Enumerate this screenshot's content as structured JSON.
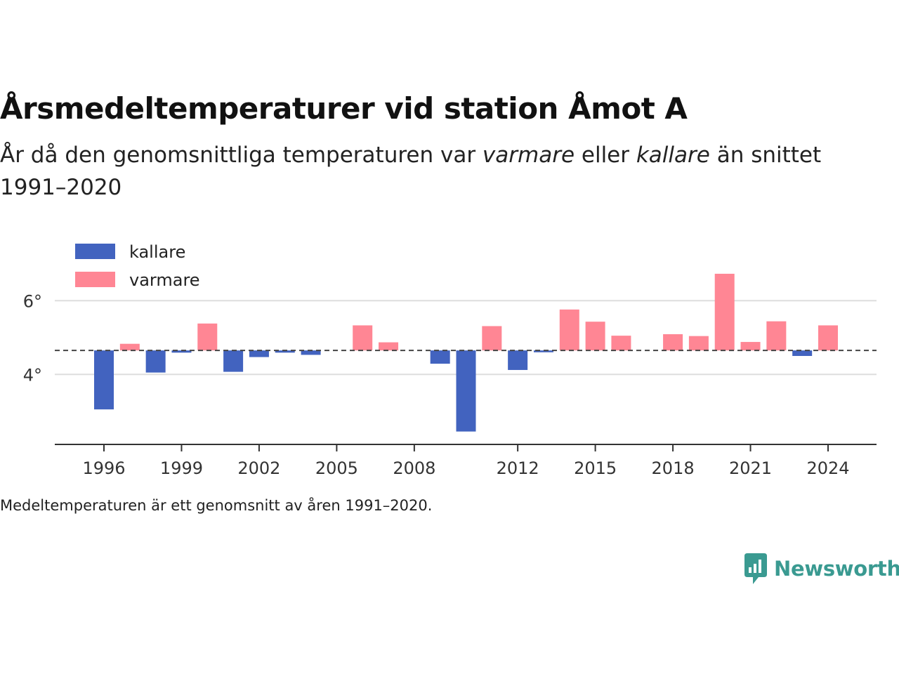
{
  "title": "Årsmedeltemperaturer vid station Åmot A",
  "subtitle": {
    "part1": "År då den genomsnittliga temperaturen var ",
    "warm_word": "varmare",
    "part2": " eller ",
    "cold_word": "kallare",
    "part3": " än snittet 1991–2020"
  },
  "footnote": "Medeltemperaturen är ett genomsnitt av åren 1991–2020.",
  "brand": {
    "name": "Newsworthy",
    "icon": "newsworthy-logo-icon"
  },
  "colors": {
    "kallare": "#4263bf",
    "varmare": "#ff8694",
    "grid": "#dddddd",
    "axis": "#333333",
    "baseline": "#444444",
    "brand": "#3a9a91"
  },
  "chart_data": {
    "type": "bar",
    "baseline": 4.65,
    "baseline_style": "dashed",
    "x": [
      1996,
      1997,
      1998,
      1999,
      2000,
      2001,
      2002,
      2003,
      2004,
      2005,
      2006,
      2007,
      2008,
      2009,
      2010,
      2011,
      2012,
      2013,
      2014,
      2015,
      2016,
      2017,
      2018,
      2019,
      2020,
      2021,
      2022,
      2023,
      2024
    ],
    "values": [
      3.05,
      4.83,
      4.05,
      4.59,
      5.38,
      4.07,
      4.47,
      4.59,
      4.53,
      null,
      5.33,
      4.87,
      null,
      4.29,
      2.45,
      5.31,
      4.12,
      4.6,
      5.76,
      5.43,
      5.05,
      null,
      5.09,
      5.04,
      6.73,
      4.88,
      5.44,
      4.5,
      5.33
    ],
    "series": [
      {
        "name": "kallare",
        "color": "#4263bf"
      },
      {
        "name": "varmare",
        "color": "#ff8694"
      }
    ],
    "x_ticks": [
      1996,
      1999,
      2002,
      2005,
      2008,
      2012,
      2015,
      2018,
      2021,
      2024
    ],
    "y_ticks": [
      {
        "value": 4,
        "label": "4°"
      },
      {
        "value": 6,
        "label": "6°"
      }
    ],
    "ylim": [
      2.1,
      7.3
    ],
    "grid": true,
    "legend_position": "top-left"
  }
}
